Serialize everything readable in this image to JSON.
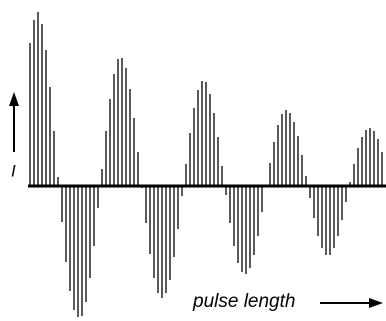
{
  "chart_data": {
    "type": "stem",
    "x_label": "pulse length",
    "y_label": "I",
    "color": "#000000",
    "ylim": [
      -135,
      175
    ],
    "values": [
      143,
      166,
      174,
      162,
      136,
      99,
      55,
      9,
      -36,
      -76,
      -105,
      -124,
      -131,
      -130,
      -116,
      -92,
      -60,
      -22,
      17,
      55,
      87,
      112,
      127,
      128,
      118,
      97,
      68,
      34,
      -2,
      -37,
      -68,
      -92,
      -107,
      -112,
      -107,
      -94,
      -71,
      -43,
      -10,
      22,
      53,
      78,
      96,
      105,
      104,
      92,
      73,
      49,
      20,
      -9,
      -37,
      -60,
      -77,
      -86,
      -88,
      -82,
      -69,
      -50,
      -26,
      -1,
      23,
      44,
      61,
      72,
      76,
      73,
      64,
      50,
      31,
      10,
      -12,
      -32,
      -50,
      -62,
      -69,
      -69,
      -62,
      -50,
      -34,
      -16,
      4,
      22,
      38,
      49,
      56,
      58,
      55,
      47,
      34
    ]
  }
}
